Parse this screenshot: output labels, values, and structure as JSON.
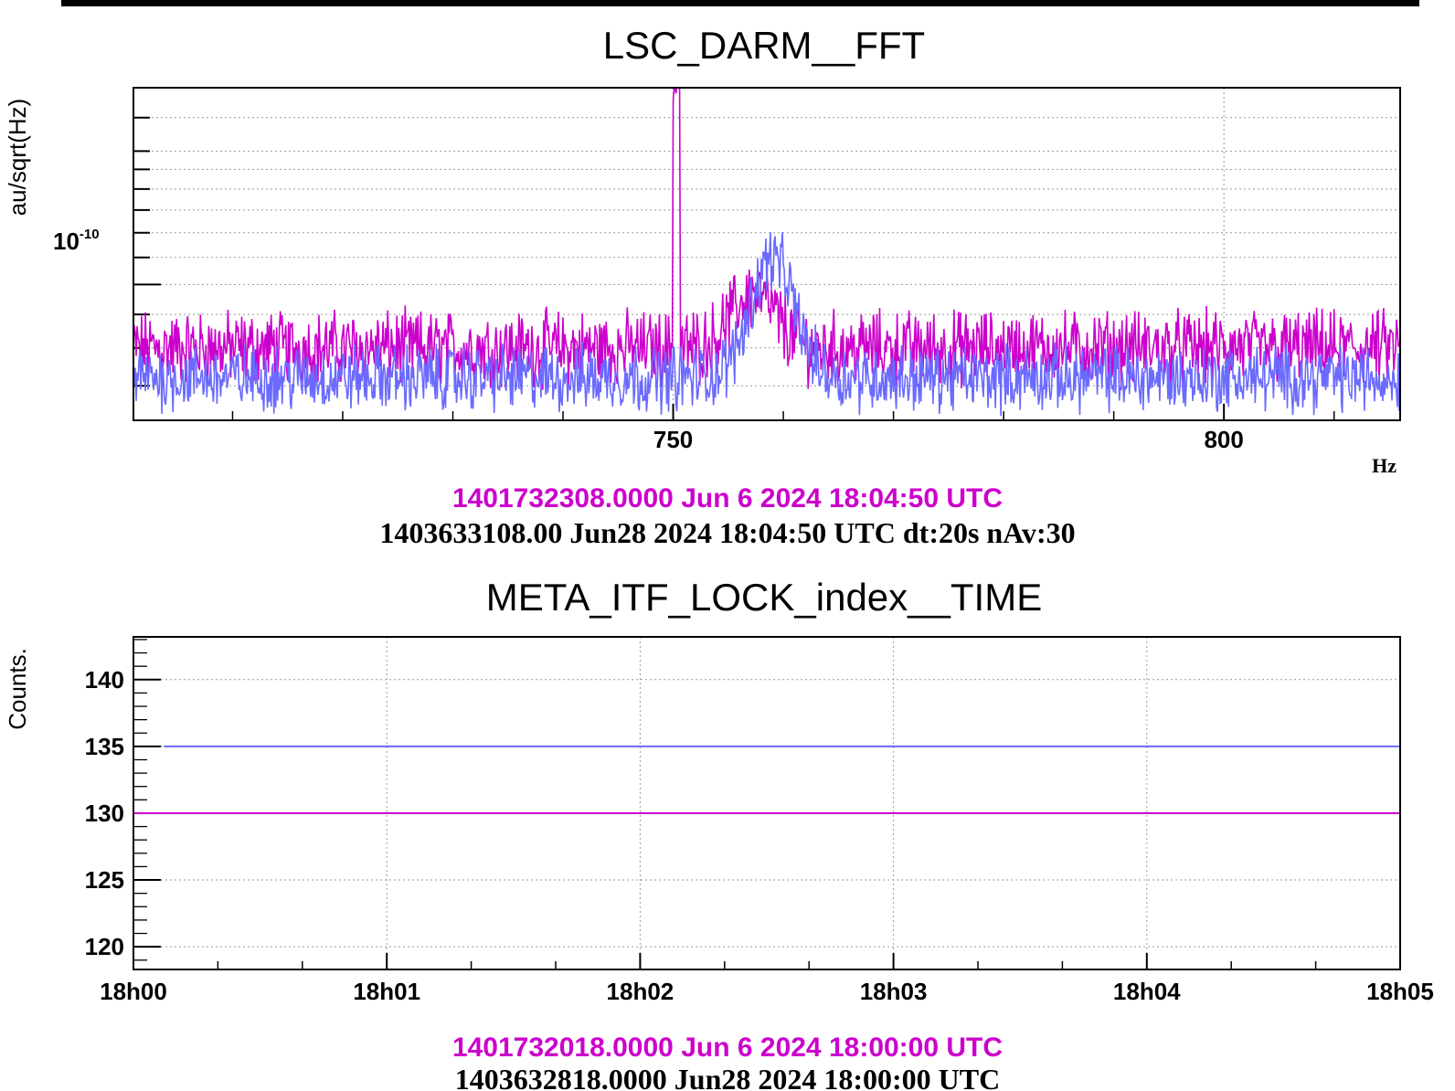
{
  "colors": {
    "reference": "#cc00cc",
    "current": "#6a6aff"
  },
  "chart_data": [
    {
      "type": "line",
      "title": "LSC_DARM__FFT",
      "ylabel": "au/sqrt(Hz)",
      "xlabel": "Hz",
      "yscale": "log",
      "xlim": [
        701,
        816
      ],
      "ylim": [
        6.2e-11,
        2e-10
      ],
      "x_ticks": [
        {
          "value": 750,
          "label": "750"
        },
        {
          "value": 800,
          "label": "800"
        }
      ],
      "y_ticks": [
        {
          "value": 1e-10,
          "base": "10",
          "exp": "-10"
        }
      ],
      "grid": true,
      "series": [
        {
          "color": "#cc00cc",
          "baseline": 8e-11,
          "noise": 0.045,
          "features": [
            {
              "type": "line_peak",
              "x": 750.3,
              "peak": 2e-10,
              "width": 0.35
            },
            {
              "type": "bump",
              "x": 757.3,
              "peak": 9.7e-11,
              "width": 2.8
            }
          ]
        },
        {
          "color": "#6a6aff",
          "baseline": 7.2e-11,
          "noise": 0.04,
          "features": [
            {
              "type": "bump",
              "x": 759.0,
              "peak": 1.1e-10,
              "width": 2.8
            }
          ]
        }
      ],
      "footer": {
        "reference": "1401732308.0000 Jun 6 2024 18:04:50 UTC",
        "current": "1403633108.00 Jun28 2024 18:04:50 UTC dt:20s nAv:30"
      }
    },
    {
      "type": "line",
      "title": "META_ITF_LOCK_index__TIME",
      "ylabel": "Counts.",
      "xlim": [
        0,
        5
      ],
      "ylim": [
        118.3,
        143.2
      ],
      "x_ticks": [
        {
          "value": 0,
          "label": "18h00"
        },
        {
          "value": 1,
          "label": "18h01"
        },
        {
          "value": 2,
          "label": "18h02"
        },
        {
          "value": 3,
          "label": "18h03"
        },
        {
          "value": 4,
          "label": "18h04"
        },
        {
          "value": 5,
          "label": "18h05"
        }
      ],
      "y_ticks": [
        {
          "value": 120,
          "label": "120"
        },
        {
          "value": 125,
          "label": "125"
        },
        {
          "value": 130,
          "label": "130"
        },
        {
          "value": 135,
          "label": "135"
        },
        {
          "value": 140,
          "label": "140"
        }
      ],
      "grid": true,
      "series": [
        {
          "color": "#6a6aff",
          "x": [
            0.12,
            5
          ],
          "values": [
            135,
            135
          ]
        },
        {
          "color": "#cc00cc",
          "x": [
            0,
            5
          ],
          "values": [
            130,
            130
          ]
        }
      ],
      "footer": {
        "reference": "1401732018.0000 Jun 6 2024 18:00:00 UTC",
        "current": "1403632818.0000 Jun28 2024 18:00:00 UTC"
      }
    }
  ]
}
